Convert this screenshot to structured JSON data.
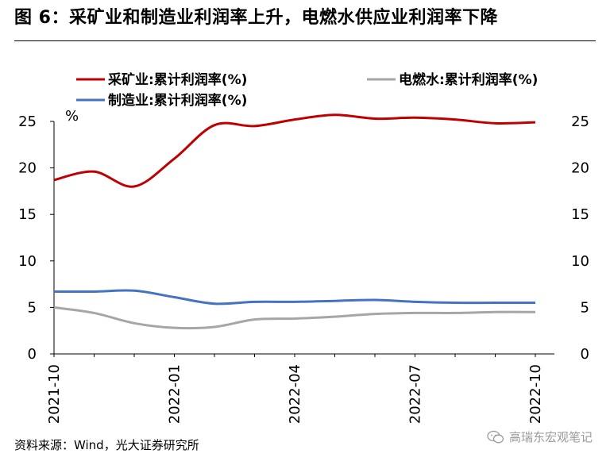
{
  "figure": {
    "title": "图 6：采矿业和制造业利润率上升，电燃水供应业利润率下降",
    "source": "资料来源：Wind，光大证券研究所",
    "watermark": "高瑞东宏观笔记"
  },
  "chart_data": {
    "type": "line",
    "unit_label": "%",
    "x": [
      "2021-10",
      "2021-11",
      "2021-12",
      "2022-01",
      "2022-02",
      "2022-03",
      "2022-04",
      "2022-05",
      "2022-06",
      "2022-07",
      "2022-08",
      "2022-09",
      "2022-10"
    ],
    "x_tick_labels": [
      "2021-10",
      "2022-01",
      "2022-04",
      "2022-07",
      "2022-10"
    ],
    "series": [
      {
        "name": "采矿业:累计利润率(%)",
        "color": "#c00000",
        "axis": "left",
        "values": [
          18.7,
          19.6,
          18.0,
          21.0,
          24.6,
          24.5,
          25.2,
          25.7,
          25.3,
          25.4,
          25.2,
          24.8,
          24.9
        ]
      },
      {
        "name": "电燃水:累计利润率(%)",
        "color": "#a6a6a6",
        "axis": "right",
        "values": [
          5.0,
          4.4,
          3.3,
          2.8,
          2.9,
          3.7,
          3.8,
          4.0,
          4.3,
          4.4,
          4.4,
          4.5,
          4.5
        ]
      },
      {
        "name": "制造业:累计利润率(%)",
        "color": "#4472c4",
        "axis": "left",
        "values": [
          6.7,
          6.7,
          6.8,
          6.1,
          5.4,
          5.6,
          5.6,
          5.7,
          5.8,
          5.6,
          5.5,
          5.5,
          5.5
        ]
      }
    ],
    "y_left": {
      "min": 0,
      "max": 25,
      "ticks": [
        0,
        5,
        10,
        15,
        20,
        25
      ]
    },
    "y_right": {
      "min": 0,
      "max": 25,
      "ticks": [
        0,
        5,
        10,
        15,
        20,
        25
      ]
    },
    "legend_position": "top",
    "grid": false
  },
  "colors": {
    "axis": "#000000",
    "watermark": "#9a9a9a"
  }
}
